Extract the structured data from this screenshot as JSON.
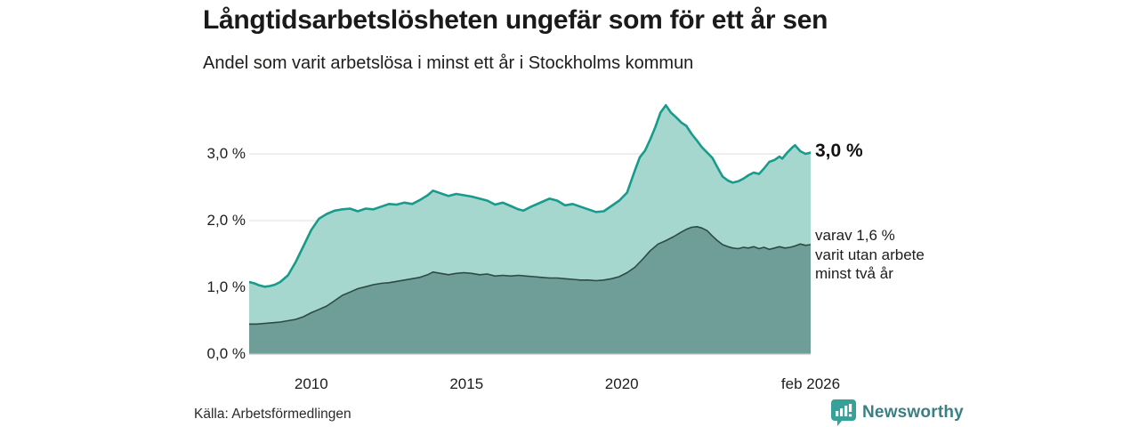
{
  "header": {
    "title": "Långtidsarbetslösheten ungefär som för ett år sen",
    "subtitle": "Andel som varit arbetslösa i minst ett år i Stockholms kommun"
  },
  "annotations": {
    "total_end_label": "3,0 %",
    "sub_label_lines": [
      "varav 1,6 %",
      "varit utan arbete",
      "minst två år"
    ]
  },
  "footer": {
    "source": "Källa: Arbetsförmedlingen",
    "logo_text": "Newsworthy"
  },
  "colors": {
    "total_line": "#189b8c",
    "total_fill": "#a6d7ce",
    "sub_line": "#2c4a46",
    "sub_fill": "#6f9d97",
    "gridline": "#dcdcdc",
    "axis_line": "#c4c4c4",
    "text": "#1d1d1b",
    "logo_teal": "#36a099",
    "logo_text_color": "#3b7f83"
  },
  "chart_data": {
    "type": "area",
    "title": "Långtidsarbetslösheten ungefär som för ett år sen",
    "subtitle": "Andel som varit arbetslösa i minst ett år i Stockholms kommun",
    "xlabel": "",
    "ylabel": "",
    "x_range": [
      2008.0,
      2026.0833
    ],
    "y_range": [
      0,
      4.0
    ],
    "grid": true,
    "legend_position": "right-annotations",
    "x_ticks": [
      {
        "label": "2010",
        "value": 2010
      },
      {
        "label": "2015",
        "value": 2015
      },
      {
        "label": "2020",
        "value": 2020
      },
      {
        "label": "feb 2026",
        "value": 2026.0833
      }
    ],
    "y_ticks": [
      {
        "label": "0,0 %",
        "value": 0
      },
      {
        "label": "1,0 %",
        "value": 1
      },
      {
        "label": "2,0 %",
        "value": 2
      },
      {
        "label": "3,0 %",
        "value": 3
      }
    ],
    "series": [
      {
        "name": "Andel arbetslösa minst ett år",
        "end_value": 3.0,
        "points": [
          [
            2008.0,
            1.08
          ],
          [
            2008.17,
            1.06
          ],
          [
            2008.33,
            1.03
          ],
          [
            2008.5,
            1.01
          ],
          [
            2008.67,
            1.02
          ],
          [
            2008.83,
            1.04
          ],
          [
            2009.0,
            1.08
          ],
          [
            2009.25,
            1.18
          ],
          [
            2009.5,
            1.38
          ],
          [
            2009.75,
            1.62
          ],
          [
            2010.0,
            1.86
          ],
          [
            2010.25,
            2.03
          ],
          [
            2010.5,
            2.1
          ],
          [
            2010.75,
            2.15
          ],
          [
            2011.0,
            2.17
          ],
          [
            2011.25,
            2.18
          ],
          [
            2011.5,
            2.14
          ],
          [
            2011.75,
            2.18
          ],
          [
            2012.0,
            2.17
          ],
          [
            2012.25,
            2.21
          ],
          [
            2012.5,
            2.25
          ],
          [
            2012.75,
            2.24
          ],
          [
            2013.0,
            2.27
          ],
          [
            2013.25,
            2.25
          ],
          [
            2013.5,
            2.31
          ],
          [
            2013.75,
            2.38
          ],
          [
            2013.92,
            2.45
          ],
          [
            2014.17,
            2.41
          ],
          [
            2014.42,
            2.37
          ],
          [
            2014.67,
            2.4
          ],
          [
            2014.92,
            2.38
          ],
          [
            2015.17,
            2.36
          ],
          [
            2015.42,
            2.33
          ],
          [
            2015.67,
            2.3
          ],
          [
            2015.92,
            2.24
          ],
          [
            2016.17,
            2.27
          ],
          [
            2016.42,
            2.22
          ],
          [
            2016.67,
            2.17
          ],
          [
            2016.83,
            2.15
          ],
          [
            2017.08,
            2.21
          ],
          [
            2017.33,
            2.26
          ],
          [
            2017.67,
            2.33
          ],
          [
            2017.92,
            2.3
          ],
          [
            2018.17,
            2.23
          ],
          [
            2018.42,
            2.25
          ],
          [
            2018.67,
            2.21
          ],
          [
            2018.92,
            2.17
          ],
          [
            2019.17,
            2.13
          ],
          [
            2019.42,
            2.14
          ],
          [
            2019.67,
            2.22
          ],
          [
            2019.92,
            2.3
          ],
          [
            2020.17,
            2.42
          ],
          [
            2020.42,
            2.75
          ],
          [
            2020.58,
            2.95
          ],
          [
            2020.75,
            3.05
          ],
          [
            2020.92,
            3.22
          ],
          [
            2021.08,
            3.4
          ],
          [
            2021.25,
            3.62
          ],
          [
            2021.42,
            3.73
          ],
          [
            2021.58,
            3.62
          ],
          [
            2021.75,
            3.55
          ],
          [
            2021.92,
            3.47
          ],
          [
            2022.08,
            3.42
          ],
          [
            2022.25,
            3.3
          ],
          [
            2022.42,
            3.2
          ],
          [
            2022.58,
            3.1
          ],
          [
            2022.75,
            3.02
          ],
          [
            2022.92,
            2.94
          ],
          [
            2023.08,
            2.8
          ],
          [
            2023.25,
            2.66
          ],
          [
            2023.42,
            2.6
          ],
          [
            2023.58,
            2.57
          ],
          [
            2023.75,
            2.59
          ],
          [
            2023.92,
            2.63
          ],
          [
            2024.08,
            2.68
          ],
          [
            2024.25,
            2.72
          ],
          [
            2024.42,
            2.7
          ],
          [
            2024.58,
            2.78
          ],
          [
            2024.75,
            2.88
          ],
          [
            2024.92,
            2.91
          ],
          [
            2025.08,
            2.96
          ],
          [
            2025.17,
            2.93
          ],
          [
            2025.33,
            3.02
          ],
          [
            2025.5,
            3.1
          ],
          [
            2025.58,
            3.13
          ],
          [
            2025.75,
            3.04
          ],
          [
            2025.92,
            3.0
          ],
          [
            2026.0833,
            3.02
          ]
        ]
      },
      {
        "name": "varav utan arbete minst två år",
        "end_value": 1.6,
        "points": [
          [
            2008.0,
            0.45
          ],
          [
            2008.25,
            0.45
          ],
          [
            2008.5,
            0.46
          ],
          [
            2008.75,
            0.47
          ],
          [
            2009.0,
            0.48
          ],
          [
            2009.25,
            0.5
          ],
          [
            2009.5,
            0.52
          ],
          [
            2009.75,
            0.56
          ],
          [
            2010.0,
            0.62
          ],
          [
            2010.25,
            0.67
          ],
          [
            2010.5,
            0.72
          ],
          [
            2010.75,
            0.8
          ],
          [
            2011.0,
            0.88
          ],
          [
            2011.25,
            0.93
          ],
          [
            2011.5,
            0.98
          ],
          [
            2011.75,
            1.01
          ],
          [
            2012.0,
            1.04
          ],
          [
            2012.25,
            1.06
          ],
          [
            2012.5,
            1.07
          ],
          [
            2012.75,
            1.09
          ],
          [
            2013.0,
            1.11
          ],
          [
            2013.25,
            1.13
          ],
          [
            2013.5,
            1.15
          ],
          [
            2013.75,
            1.19
          ],
          [
            2013.92,
            1.23
          ],
          [
            2014.17,
            1.21
          ],
          [
            2014.42,
            1.19
          ],
          [
            2014.67,
            1.21
          ],
          [
            2014.92,
            1.22
          ],
          [
            2015.17,
            1.21
          ],
          [
            2015.42,
            1.19
          ],
          [
            2015.67,
            1.2
          ],
          [
            2015.92,
            1.17
          ],
          [
            2016.17,
            1.18
          ],
          [
            2016.42,
            1.17
          ],
          [
            2016.67,
            1.18
          ],
          [
            2016.92,
            1.17
          ],
          [
            2017.17,
            1.16
          ],
          [
            2017.42,
            1.15
          ],
          [
            2017.67,
            1.14
          ],
          [
            2017.92,
            1.14
          ],
          [
            2018.17,
            1.13
          ],
          [
            2018.42,
            1.12
          ],
          [
            2018.67,
            1.11
          ],
          [
            2018.92,
            1.11
          ],
          [
            2019.17,
            1.1
          ],
          [
            2019.42,
            1.11
          ],
          [
            2019.67,
            1.13
          ],
          [
            2019.92,
            1.16
          ],
          [
            2020.17,
            1.22
          ],
          [
            2020.42,
            1.3
          ],
          [
            2020.67,
            1.42
          ],
          [
            2020.92,
            1.55
          ],
          [
            2021.17,
            1.65
          ],
          [
            2021.42,
            1.7
          ],
          [
            2021.67,
            1.76
          ],
          [
            2021.92,
            1.83
          ],
          [
            2022.08,
            1.87
          ],
          [
            2022.25,
            1.9
          ],
          [
            2022.42,
            1.91
          ],
          [
            2022.58,
            1.89
          ],
          [
            2022.75,
            1.85
          ],
          [
            2022.92,
            1.77
          ],
          [
            2023.08,
            1.7
          ],
          [
            2023.25,
            1.64
          ],
          [
            2023.42,
            1.61
          ],
          [
            2023.58,
            1.59
          ],
          [
            2023.75,
            1.58
          ],
          [
            2023.92,
            1.6
          ],
          [
            2024.08,
            1.59
          ],
          [
            2024.25,
            1.61
          ],
          [
            2024.42,
            1.58
          ],
          [
            2024.58,
            1.6
          ],
          [
            2024.75,
            1.57
          ],
          [
            2024.92,
            1.59
          ],
          [
            2025.08,
            1.61
          ],
          [
            2025.25,
            1.59
          ],
          [
            2025.42,
            1.6
          ],
          [
            2025.58,
            1.62
          ],
          [
            2025.75,
            1.65
          ],
          [
            2025.92,
            1.63
          ],
          [
            2026.0833,
            1.64
          ]
        ]
      }
    ]
  }
}
